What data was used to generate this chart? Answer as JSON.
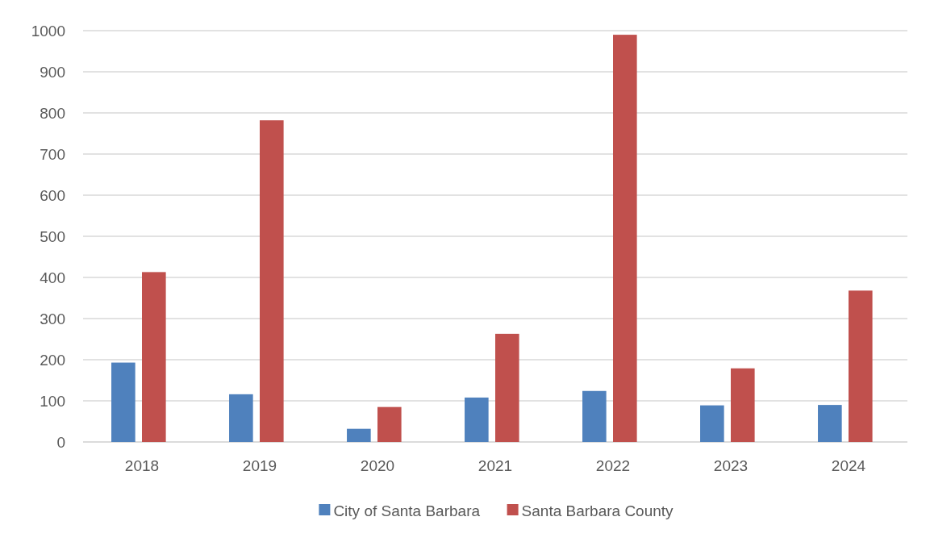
{
  "chart_data": {
    "type": "bar",
    "categories": [
      "2018",
      "2019",
      "2020",
      "2021",
      "2022",
      "2023",
      "2024"
    ],
    "series": [
      {
        "name": "City of Santa Barbara",
        "color": "#4f81bd",
        "values": [
          193,
          116,
          32,
          108,
          124,
          89,
          90
        ]
      },
      {
        "name": "Santa Barbara County",
        "color": "#c0504d",
        "values": [
          413,
          782,
          85,
          263,
          990,
          179,
          368
        ]
      }
    ],
    "ylim": [
      0,
      1000
    ],
    "yticks": [
      0,
      100,
      200,
      300,
      400,
      500,
      600,
      700,
      800,
      900,
      1000
    ],
    "grid": "y",
    "legend": "bottom"
  }
}
